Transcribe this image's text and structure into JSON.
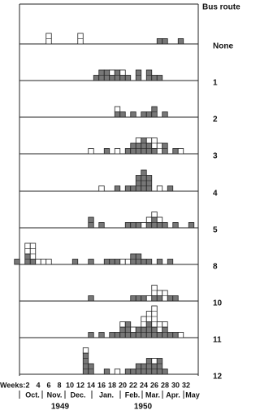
{
  "chart_data": {
    "type": "bar",
    "y_label": "Bus route",
    "x_label": "Weeks:",
    "xlim": [
      0,
      34
    ],
    "xticks": [
      2,
      4,
      6,
      8,
      10,
      12,
      14,
      16,
      18,
      20,
      22,
      24,
      26,
      28,
      30,
      32
    ],
    "months": [
      "Oct.",
      "Nov.",
      "Dec.",
      "Jan.",
      "Feb.",
      "Mar.",
      "Apr.",
      "May"
    ],
    "years": [
      "1949",
      "1950"
    ],
    "series_names": [
      "shaded",
      "open"
    ],
    "colors": [
      "#777777",
      "#ffffff"
    ],
    "panels": [
      {
        "name": "None",
        "weeks": [
          6,
          12,
          27,
          28,
          31
        ],
        "shaded": [
          0,
          0,
          1,
          1,
          1
        ],
        "open": [
          2,
          2,
          0,
          0,
          0
        ]
      },
      {
        "name": "1",
        "weeks": [
          15,
          16,
          17,
          18,
          19,
          20,
          21,
          23,
          25,
          26,
          27
        ],
        "shaded": [
          1,
          2,
          2,
          1,
          2,
          1,
          1,
          2,
          2,
          1,
          1
        ],
        "open": [
          0,
          0,
          0,
          1,
          0,
          1,
          0,
          0,
          0,
          0,
          0
        ]
      },
      {
        "name": "2",
        "weeks": [
          19,
          20,
          22,
          24,
          25,
          26,
          28
        ],
        "shaded": [
          1,
          1,
          1,
          1,
          1,
          2,
          1
        ],
        "open": [
          1,
          0,
          0,
          0,
          0,
          0,
          0
        ]
      },
      {
        "name": "3",
        "weeks": [
          14,
          17,
          19,
          21,
          22,
          23,
          24,
          25,
          26,
          27,
          28,
          30,
          31
        ],
        "shaded": [
          0,
          1,
          0,
          1,
          2,
          2,
          3,
          2,
          1,
          0,
          2,
          1,
          0
        ],
        "open": [
          1,
          0,
          1,
          0,
          0,
          1,
          0,
          1,
          2,
          2,
          0,
          0,
          1
        ]
      },
      {
        "name": "4",
        "weeks": [
          16,
          19,
          21,
          22,
          23,
          24,
          25,
          27,
          29
        ],
        "shaded": [
          0,
          1,
          1,
          1,
          3,
          4,
          3,
          0,
          1
        ],
        "open": [
          1,
          0,
          0,
          0,
          0,
          0,
          0,
          1,
          0
        ]
      },
      {
        "name": "5",
        "weeks": [
          14,
          16,
          21,
          22,
          23,
          24,
          25,
          26,
          27,
          28,
          30,
          33
        ],
        "shaded": [
          2,
          1,
          1,
          1,
          1,
          0,
          1,
          2,
          1,
          1,
          1,
          1
        ],
        "open": [
          0,
          0,
          0,
          0,
          0,
          1,
          1,
          1,
          1,
          0,
          0,
          0
        ]
      },
      {
        "name": "8",
        "weeks": [
          0,
          2,
          3,
          4,
          5,
          6,
          11,
          14,
          17,
          18,
          19,
          20,
          21,
          22,
          23,
          24,
          25,
          27,
          29
        ],
        "shaded": [
          1,
          2,
          1,
          0,
          0,
          0,
          1,
          1,
          1,
          1,
          1,
          0,
          0,
          2,
          2,
          1,
          1,
          1,
          1
        ],
        "open": [
          0,
          2,
          3,
          1,
          1,
          1,
          0,
          0,
          0,
          0,
          0,
          1,
          1,
          0,
          0,
          0,
          0,
          0,
          0
        ]
      },
      {
        "name": "10",
        "weeks": [
          14,
          22,
          23,
          24,
          25,
          26,
          27,
          28,
          29,
          30
        ],
        "shaded": [
          1,
          1,
          1,
          1,
          0,
          1,
          1,
          0,
          1,
          1
        ],
        "open": [
          0,
          0,
          0,
          0,
          1,
          2,
          1,
          2,
          0,
          0
        ]
      },
      {
        "name": "11",
        "weeks": [
          14,
          16,
          18,
          19,
          20,
          21,
          22,
          23,
          24,
          25,
          26,
          27,
          28,
          29,
          30,
          31
        ],
        "shaded": [
          1,
          1,
          1,
          1,
          2,
          3,
          1,
          2,
          2,
          3,
          2,
          1,
          2,
          1,
          1,
          0
        ],
        "open": [
          0,
          0,
          0,
          0,
          1,
          0,
          1,
          0,
          2,
          2,
          4,
          2,
          1,
          0,
          0,
          1
        ]
      },
      {
        "name": "12",
        "weeks": [
          13,
          14,
          17,
          19,
          21,
          22,
          23,
          24,
          25,
          26,
          27,
          28
        ],
        "shaded": [
          4,
          2,
          1,
          0,
          1,
          1,
          2,
          2,
          3,
          2,
          3,
          1
        ],
        "open": [
          1,
          0,
          0,
          1,
          0,
          0,
          0,
          0,
          0,
          1,
          0,
          0
        ]
      }
    ]
  }
}
